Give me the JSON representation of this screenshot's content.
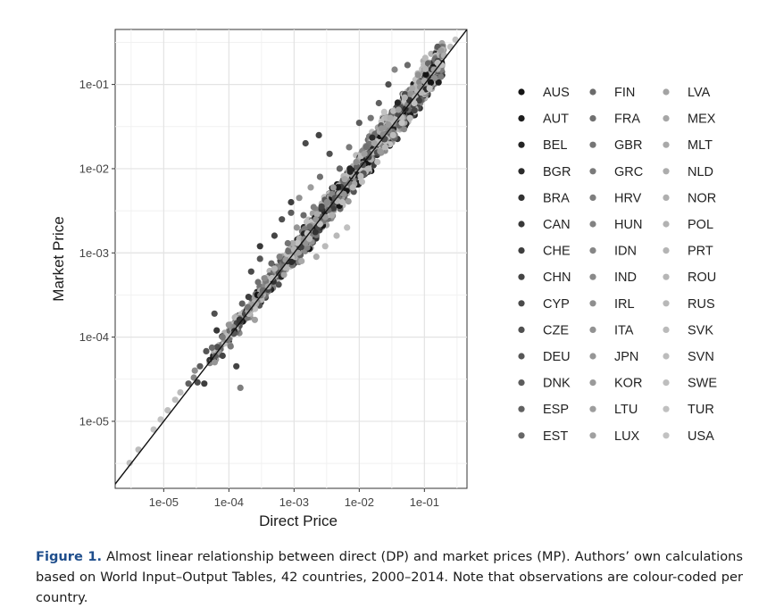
{
  "chart_data": {
    "type": "scatter",
    "xlabel": "Direct Price",
    "ylabel": "Market Price",
    "x_scale": "log10",
    "y_scale": "log10",
    "xlim": [
      1.8e-06,
      0.45
    ],
    "ylim": [
      1.6e-06,
      0.45
    ],
    "x_ticks": [
      1e-05,
      0.0001,
      0.001,
      0.01,
      0.1
    ],
    "x_tick_labels": [
      "1e-05",
      "1e-04",
      "1e-03",
      "1e-02",
      "1e-01"
    ],
    "y_ticks": [
      1e-05,
      0.0001,
      0.001,
      0.01,
      0.1
    ],
    "y_tick_labels": [
      "1e-05",
      "1e-04",
      "1e-03",
      "1e-02",
      "1e-01"
    ],
    "grid": true,
    "legend_position": "right",
    "reference_line": "y = x",
    "series": [
      {
        "name": "AUS",
        "color": "#151515"
      },
      {
        "name": "AUT",
        "color": "#1d1d1d"
      },
      {
        "name": "BEL",
        "color": "#242424"
      },
      {
        "name": "BGR",
        "color": "#2b2b2b"
      },
      {
        "name": "BRA",
        "color": "#323232"
      },
      {
        "name": "CAN",
        "color": "#383838"
      },
      {
        "name": "CHE",
        "color": "#3e3e3e"
      },
      {
        "name": "CHN",
        "color": "#444444"
      },
      {
        "name": "CYP",
        "color": "#4a4a4a"
      },
      {
        "name": "CZE",
        "color": "#505050"
      },
      {
        "name": "DEU",
        "color": "#565656"
      },
      {
        "name": "DNK",
        "color": "#5c5c5c"
      },
      {
        "name": "ESP",
        "color": "#616161"
      },
      {
        "name": "EST",
        "color": "#666666"
      },
      {
        "name": "FIN",
        "color": "#6b6b6b"
      },
      {
        "name": "FRA",
        "color": "#707070"
      },
      {
        "name": "GBR",
        "color": "#757575"
      },
      {
        "name": "GRC",
        "color": "#7a7a7a"
      },
      {
        "name": "HRV",
        "color": "#7e7e7e"
      },
      {
        "name": "HUN",
        "color": "#828282"
      },
      {
        "name": "IDN",
        "color": "#868686"
      },
      {
        "name": "IND",
        "color": "#8a8a8a"
      },
      {
        "name": "IRL",
        "color": "#8e8e8e"
      },
      {
        "name": "ITA",
        "color": "#929292"
      },
      {
        "name": "JPN",
        "color": "#969696"
      },
      {
        "name": "KOR",
        "color": "#9a9a9a"
      },
      {
        "name": "LTU",
        "color": "#9d9d9d"
      },
      {
        "name": "LUX",
        "color": "#a0a0a0"
      },
      {
        "name": "LVA",
        "color": "#a3a3a3"
      },
      {
        "name": "MEX",
        "color": "#a6a6a6"
      },
      {
        "name": "MLT",
        "color": "#a9a9a9"
      },
      {
        "name": "NLD",
        "color": "#acacac"
      },
      {
        "name": "NOR",
        "color": "#afafaf"
      },
      {
        "name": "POL",
        "color": "#b2b2b2"
      },
      {
        "name": "PRT",
        "color": "#b4b4b4"
      },
      {
        "name": "ROU",
        "color": "#b6b6b6"
      },
      {
        "name": "RUS",
        "color": "#b8b8b8"
      },
      {
        "name": "SVK",
        "color": "#bababa"
      },
      {
        "name": "SVN",
        "color": "#bcbcbc"
      },
      {
        "name": "SWE",
        "color": "#bebebe"
      },
      {
        "name": "TUR",
        "color": "#c0c0c0"
      },
      {
        "name": "USA",
        "color": "#c2c2c2"
      }
    ],
    "points": [
      {
        "x": 3e-06,
        "y": 3.2e-06,
        "s": 40
      },
      {
        "x": 4.1e-06,
        "y": 4.6e-06,
        "s": 38
      },
      {
        "x": 7e-06,
        "y": 8e-06,
        "s": 40
      },
      {
        "x": 9e-06,
        "y": 1.05e-05,
        "s": 41
      },
      {
        "x": 1.15e-05,
        "y": 1.35e-05,
        "s": 39
      },
      {
        "x": 1.5e-05,
        "y": 1.8e-05,
        "s": 40
      },
      {
        "x": 1.8e-05,
        "y": 2.2e-05,
        "s": 38
      },
      {
        "x": 2.4e-05,
        "y": 2.8e-05,
        "s": 12
      },
      {
        "x": 2.9e-05,
        "y": 3.3e-05,
        "s": 20
      },
      {
        "x": 3.3e-05,
        "y": 2.9e-05,
        "s": 8
      },
      {
        "x": 3.6e-05,
        "y": 4.5e-05,
        "s": 11
      },
      {
        "x": 3e-05,
        "y": 4e-05,
        "s": 22
      },
      {
        "x": 4.5e-05,
        "y": 6.8e-05,
        "s": 10
      },
      {
        "x": 4.2e-05,
        "y": 2.8e-05,
        "s": 6
      },
      {
        "x": 5.5e-05,
        "y": 7.5e-05,
        "s": 14
      },
      {
        "x": 6.5e-05,
        "y": 0.00012,
        "s": 5
      },
      {
        "x": 6e-05,
        "y": 0.00019,
        "s": 9
      },
      {
        "x": 8e-05,
        "y": 0.0001,
        "s": 17
      },
      {
        "x": 8e-05,
        "y": 6e-05,
        "s": 7
      },
      {
        "x": 0.0001,
        "y": 0.00014,
        "s": 24
      },
      {
        "x": 0.00012,
        "y": 0.00011,
        "s": 10
      },
      {
        "x": 0.00013,
        "y": 4.5e-05,
        "s": 7
      },
      {
        "x": 0.00015,
        "y": 2.5e-05,
        "s": 18
      },
      {
        "x": 0.00016,
        "y": 0.00025,
        "s": 12
      },
      {
        "x": 0.0002,
        "y": 0.0003,
        "s": 6
      },
      {
        "x": 0.00022,
        "y": 0.0006,
        "s": 8
      },
      {
        "x": 0.00025,
        "y": 0.00016,
        "s": 27
      },
      {
        "x": 0.00028,
        "y": 0.00045,
        "s": 15
      },
      {
        "x": 0.0003,
        "y": 0.00085,
        "s": 10
      },
      {
        "x": 0.0003,
        "y": 0.0012,
        "s": 5
      },
      {
        "x": 0.00035,
        "y": 0.0005,
        "s": 21
      },
      {
        "x": 0.0004,
        "y": 0.0004,
        "s": 30
      },
      {
        "x": 0.00045,
        "y": 0.00075,
        "s": 13
      },
      {
        "x": 0.0005,
        "y": 0.0016,
        "s": 7
      },
      {
        "x": 0.0005,
        "y": 0.00065,
        "s": 35
      },
      {
        "x": 0.0006,
        "y": 0.0009,
        "s": 19
      },
      {
        "x": 0.00065,
        "y": 0.0025,
        "s": 9
      },
      {
        "x": 0.0007,
        "y": 0.00055,
        "s": 28
      },
      {
        "x": 0.0008,
        "y": 0.0013,
        "s": 16
      },
      {
        "x": 0.0009,
        "y": 0.004,
        "s": 6
      },
      {
        "x": 0.0009,
        "y": 0.003,
        "s": 11
      },
      {
        "x": 0.001,
        "y": 0.0011,
        "s": 33
      },
      {
        "x": 0.0011,
        "y": 0.002,
        "s": 24
      },
      {
        "x": 0.0012,
        "y": 0.0045,
        "s": 23
      },
      {
        "x": 0.0013,
        "y": 0.0008,
        "s": 30
      },
      {
        "x": 0.0014,
        "y": 0.0028,
        "s": 14
      },
      {
        "x": 0.0015,
        "y": 0.02,
        "s": 8
      },
      {
        "x": 0.0016,
        "y": 0.0017,
        "s": 39
      },
      {
        "x": 0.0018,
        "y": 0.006,
        "s": 26
      },
      {
        "x": 0.002,
        "y": 0.0035,
        "s": 18
      },
      {
        "x": 0.0022,
        "y": 0.0009,
        "s": 31
      },
      {
        "x": 0.0024,
        "y": 0.025,
        "s": 7
      },
      {
        "x": 0.0025,
        "y": 0.0022,
        "s": 40
      },
      {
        "x": 0.0025,
        "y": 0.008,
        "s": 15
      },
      {
        "x": 0.003,
        "y": 0.0012,
        "s": 37
      },
      {
        "x": 0.0032,
        "y": 0.004,
        "s": 21
      },
      {
        "x": 0.0035,
        "y": 0.015,
        "s": 9
      },
      {
        "x": 0.0038,
        "y": 0.0028,
        "s": 32
      },
      {
        "x": 0.004,
        "y": 0.006,
        "s": 25
      },
      {
        "x": 0.0045,
        "y": 0.0016,
        "s": 36
      },
      {
        "x": 0.005,
        "y": 0.01,
        "s": 13
      },
      {
        "x": 0.0055,
        "y": 0.004,
        "s": 38
      },
      {
        "x": 0.006,
        "y": 0.0075,
        "s": 29
      },
      {
        "x": 0.0065,
        "y": 0.002,
        "s": 40
      },
      {
        "x": 0.007,
        "y": 0.018,
        "s": 17
      },
      {
        "x": 0.008,
        "y": 0.006,
        "s": 34
      },
      {
        "x": 0.009,
        "y": 0.012,
        "s": 22
      },
      {
        "x": 0.01,
        "y": 0.035,
        "s": 11
      },
      {
        "x": 0.011,
        "y": 0.007,
        "s": 39
      },
      {
        "x": 0.012,
        "y": 0.015,
        "s": 26
      },
      {
        "x": 0.014,
        "y": 0.01,
        "s": 35
      },
      {
        "x": 0.015,
        "y": 0.04,
        "s": 16
      },
      {
        "x": 0.017,
        "y": 0.02,
        "s": 28
      },
      {
        "x": 0.019,
        "y": 0.012,
        "s": 40
      },
      {
        "x": 0.02,
        "y": 0.06,
        "s": 12
      },
      {
        "x": 0.022,
        "y": 0.03,
        "s": 24
      },
      {
        "x": 0.025,
        "y": 0.018,
        "s": 36
      },
      {
        "x": 0.028,
        "y": 0.1,
        "s": 9
      },
      {
        "x": 0.03,
        "y": 0.04,
        "s": 31
      },
      {
        "x": 0.033,
        "y": 0.025,
        "s": 38
      },
      {
        "x": 0.035,
        "y": 0.15,
        "s": 20
      },
      {
        "x": 0.04,
        "y": 0.05,
        "s": 27
      },
      {
        "x": 0.045,
        "y": 0.035,
        "s": 41
      },
      {
        "x": 0.05,
        "y": 0.07,
        "s": 33
      },
      {
        "x": 0.055,
        "y": 0.17,
        "s": 14
      },
      {
        "x": 0.06,
        "y": 0.04,
        "s": 37
      },
      {
        "x": 0.065,
        "y": 0.09,
        "s": 29
      },
      {
        "x": 0.07,
        "y": 0.06,
        "s": 40
      },
      {
        "x": 0.08,
        "y": 0.13,
        "s": 23
      },
      {
        "x": 0.09,
        "y": 0.08,
        "s": 35
      },
      {
        "x": 0.1,
        "y": 0.11,
        "s": 30
      },
      {
        "x": 0.12,
        "y": 0.09,
        "s": 41
      },
      {
        "x": 0.14,
        "y": 0.15,
        "s": 26
      },
      {
        "x": 0.16,
        "y": 0.18,
        "s": 38
      },
      {
        "x": 0.2,
        "y": 0.22,
        "s": 32
      },
      {
        "x": 0.25,
        "y": 0.28,
        "s": 40
      },
      {
        "x": 0.3,
        "y": 0.34,
        "s": 41
      }
    ]
  },
  "caption": {
    "label": "Figure 1.",
    "text": " Almost linear relationship between direct (DP) and market prices (MP). Authors’ own calculations based on World Input–Output Tables, 42 countries, 2000–2014. Note that observations are colour-coded per country."
  }
}
